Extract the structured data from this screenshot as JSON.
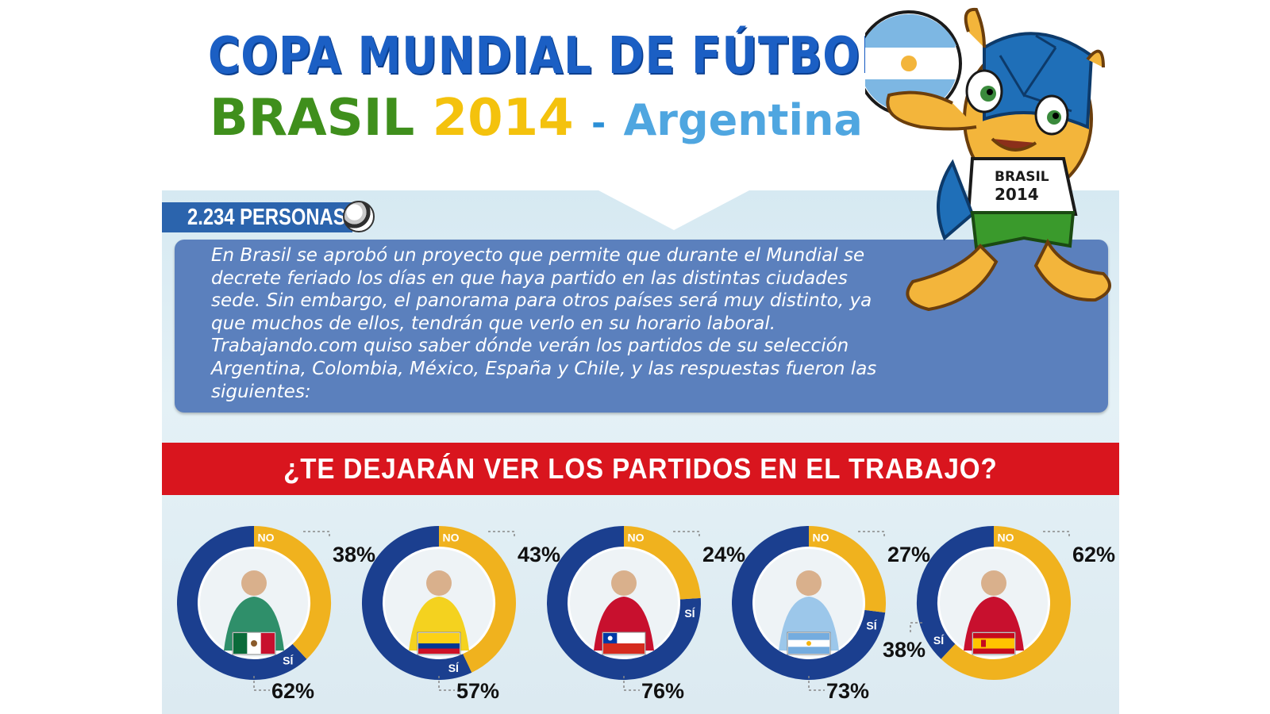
{
  "header": {
    "title_line1": "COPA MUNDIAL DE FÚTBOL",
    "title_brasil": "BRASIL",
    "title_year": "2014",
    "title_dash": "-",
    "title_country": "Argentina"
  },
  "mascot": {
    "shirt_line1": "BRASIL",
    "shirt_line2": "2014",
    "icon": "armadillo-mascot-icon"
  },
  "sample": {
    "label": "2.234 PERSONAS",
    "icon": "soccer-ball-icon"
  },
  "intro": {
    "text": "En Brasil se aprobó un proyecto que permite que durante el Mundial se decrete feriado los días en que haya partido en las distintas ciudades sede. Sin embargo, el panorama para otros países será muy distinto, ya que muchos de ellos, tendrán que verlo en su horario laboral. Trabajando.com quiso saber dónde verán los partidos de su selección Argentina, Colombia, México, España y Chile, y las respuestas fueron las siguientes:"
  },
  "question": {
    "text": "¿TE DEJARÁN VER LOS PARTIDOS EN EL TRABAJO?"
  },
  "colors": {
    "si": "#1b3f8f",
    "no": "#f0b21e",
    "banner": "#d9151e",
    "title_blue": "#1b5fc4"
  },
  "chart_data": {
    "type": "pie",
    "title": "¿TE DEJARÁN VER LOS PARTIDOS EN EL TRABAJO?",
    "legend_labels": {
      "no": "NO",
      "si": "SÍ"
    },
    "categories": [
      "México",
      "Colombia",
      "Chile",
      "Argentina",
      "España"
    ],
    "series": [
      {
        "name": "NO",
        "values": [
          38,
          43,
          24,
          27,
          62
        ]
      },
      {
        "name": "SÍ",
        "values": [
          62,
          57,
          76,
          73,
          38
        ]
      }
    ],
    "donuts": [
      {
        "country": "México",
        "no": 38,
        "si": 62,
        "no_label": "38%",
        "si_label": "62%",
        "flag": "mexico-flag-icon"
      },
      {
        "country": "Colombia",
        "no": 43,
        "si": 57,
        "no_label": "43%",
        "si_label": "57%",
        "flag": "colombia-flag-icon"
      },
      {
        "country": "Chile",
        "no": 24,
        "si": 76,
        "no_label": "24%",
        "si_label": "76%",
        "flag": "chile-flag-icon"
      },
      {
        "country": "Argentina",
        "no": 27,
        "si": 73,
        "no_label": "27%",
        "si_label": "73%",
        "flag": "argentina-flag-icon"
      },
      {
        "country": "España",
        "no": 62,
        "si": 38,
        "no_label": "62%",
        "si_label": "38%",
        "flag": "spain-flag-icon"
      }
    ]
  }
}
